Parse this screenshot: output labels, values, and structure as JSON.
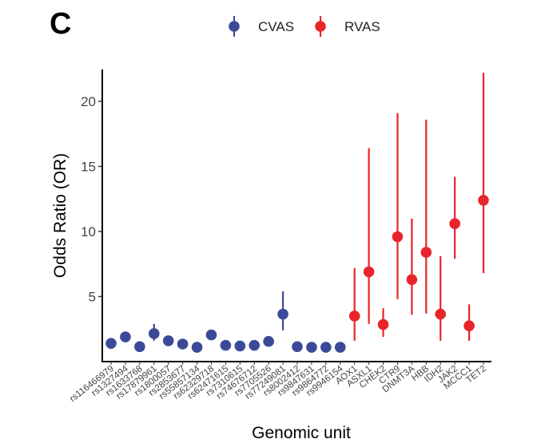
{
  "panel_label": "C",
  "chart_data": {
    "type": "scatter",
    "xlabel": "Genomic  unit",
    "ylabel": "Odds Ratio (OR)",
    "ylim": [
      0,
      23
    ],
    "y_ticks": [
      5,
      10,
      15,
      20
    ],
    "y_tick_labels": [
      "5",
      "10",
      "15",
      "20"
    ],
    "grid": false,
    "legend_position": "top",
    "colors": {
      "CVAS": "#3b4a98",
      "RVAS": "#e8252b"
    },
    "categories": [
      "rs116466979",
      "rs1327494",
      "rs1633768",
      "rs17879961",
      "rs1800057",
      "rs2853677",
      "rs55857134",
      "rs62329718",
      "rs62471615",
      "rs7310615",
      "rs74676712",
      "rs7705526",
      "rs77249081",
      "rs8002412",
      "rs9847631",
      "rs9864772",
      "rs9946154",
      "AOX1",
      "ASXL1",
      "CHEK2",
      "CTR9",
      "DNMT3A",
      "HBB",
      "IDH2",
      "JAK2",
      "MCCC1",
      "TET2"
    ],
    "series": [
      {
        "name": "CVAS",
        "points": [
          {
            "x": "rs116466979",
            "y": 1.4
          },
          {
            "x": "rs1327494",
            "y": 1.9
          },
          {
            "x": "rs1633768",
            "y": 1.15
          },
          {
            "x": "rs17879961",
            "y": 2.15,
            "lo": 1.6,
            "hi": 2.9
          },
          {
            "x": "rs1800057",
            "y": 1.6
          },
          {
            "x": "rs2853677",
            "y": 1.35
          },
          {
            "x": "rs55857134",
            "y": 1.1
          },
          {
            "x": "rs62329718",
            "y": 2.05
          },
          {
            "x": "rs62471615",
            "y": 1.25
          },
          {
            "x": "rs7310615",
            "y": 1.2
          },
          {
            "x": "rs74676712",
            "y": 1.25
          },
          {
            "x": "rs7705526",
            "y": 1.55
          },
          {
            "x": "rs77249081",
            "y": 3.65,
            "lo": 2.4,
            "hi": 5.4
          },
          {
            "x": "rs8002412",
            "y": 1.15
          },
          {
            "x": "rs9847631",
            "y": 1.1
          },
          {
            "x": "rs9864772",
            "y": 1.1
          },
          {
            "x": "rs9946154",
            "y": 1.1
          }
        ]
      },
      {
        "name": "RVAS",
        "points": [
          {
            "x": "AOX1",
            "y": 3.5,
            "lo": 1.6,
            "hi": 7.2
          },
          {
            "x": "ASXL1",
            "y": 6.9,
            "lo": 2.9,
            "hi": 16.4
          },
          {
            "x": "CHEK2",
            "y": 2.85,
            "lo": 1.9,
            "hi": 4.1
          },
          {
            "x": "CTR9",
            "y": 9.6,
            "lo": 4.8,
            "hi": 19.1
          },
          {
            "x": "DNMT3A",
            "y": 6.3,
            "lo": 3.6,
            "hi": 11.0
          },
          {
            "x": "HBB",
            "y": 8.4,
            "lo": 3.7,
            "hi": 18.6
          },
          {
            "x": "IDH2",
            "y": 3.65,
            "lo": 1.6,
            "hi": 8.1
          },
          {
            "x": "JAK2",
            "y": 10.6,
            "lo": 7.9,
            "hi": 14.2
          },
          {
            "x": "MCCC1",
            "y": 2.75,
            "lo": 1.6,
            "hi": 4.4
          },
          {
            "x": "TET2",
            "y": 12.4,
            "lo": 6.8,
            "hi": 22.2
          }
        ]
      }
    ]
  }
}
